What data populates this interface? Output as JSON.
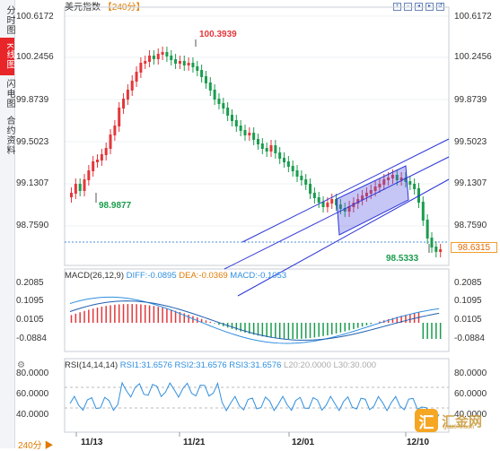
{
  "sidebar": {
    "tabs": [
      {
        "label": "分时图",
        "active": false
      },
      {
        "label": "K线图",
        "active": true
      },
      {
        "label": "闪电图",
        "active": false
      },
      {
        "label": "合约资料",
        "active": false
      }
    ]
  },
  "header": {
    "symbol": "美元指数",
    "period": "【240分】",
    "toolbar_icons": [
      "zoom-in-icon",
      "zoom-out-icon",
      "scroll-left-icon",
      "scroll-right-icon",
      "reset-icon"
    ]
  },
  "price_axis": {
    "ticks": [
      "100.6172",
      "100.2456",
      "99.8739",
      "99.5023",
      "99.1307",
      "98.7590"
    ],
    "last_price": "98.6315"
  },
  "annotations": {
    "high": "100.3939",
    "low1": "98.9877",
    "low2": "98.5333"
  },
  "macd": {
    "title": "MACD(26,12,9)",
    "diff": "DIFF:-0.0895",
    "dea": "DEA:-0.0369",
    "macd": "MACD:-0.1053",
    "ticks": [
      "0.2085",
      "0.1095",
      "0.0105",
      "-0.0884"
    ]
  },
  "rsi": {
    "title": "RSI(14,14,14)",
    "rsi1": "RSI1:31.6576",
    "rsi2": "RSI2:31.6576",
    "rsi3": "RSI3:31.6576",
    "l20": "L20:20.0000",
    "l30": "L30:30.000",
    "ticks": [
      "80.0000",
      "60.0000",
      "40.0000"
    ]
  },
  "x_axis": {
    "period_badge": "240分 ▶",
    "dates": [
      "11/13",
      "11/21",
      "12/01",
      "12/10"
    ]
  },
  "colors": {
    "up": "#e3373b",
    "down": "#1a9c4e",
    "channel": "#2b35d6",
    "rsi_line": "#2f8fe0",
    "accent": "#e07a00"
  },
  "logo": {
    "mark": "汇",
    "text": "汇金网",
    "url": "gold678.com"
  }
}
